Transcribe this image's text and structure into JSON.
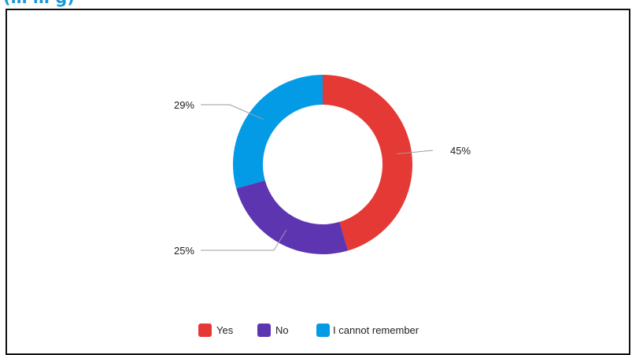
{
  "header": {
    "fragment": "(… … g)"
  },
  "colors": {
    "frame": "#111111",
    "leader": "#9e9e9e",
    "text": "#222222"
  },
  "chart_data": {
    "type": "pie",
    "donut": true,
    "categories": [
      "Yes",
      "No",
      "I cannot remember"
    ],
    "values": [
      45,
      25,
      29
    ],
    "labels": [
      "45%",
      "25%",
      "29%"
    ],
    "colors": [
      "#e53935",
      "#5e35b1",
      "#039be5"
    ],
    "legend": {
      "position": "bottom"
    }
  }
}
